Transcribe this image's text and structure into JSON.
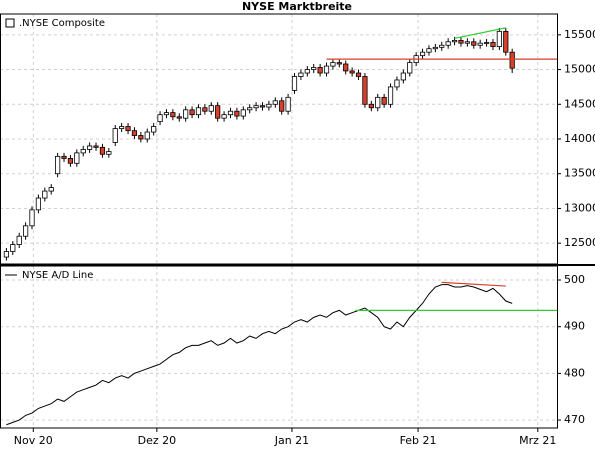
{
  "chart_data": [
    {
      "type": "candlestick",
      "title": "NYSE Marktbreite",
      "xlim": [
        -1,
        86
      ],
      "ylim": [
        12200,
        15800
      ],
      "yticks": [
        12500,
        13000,
        13500,
        14000,
        14500,
        15000,
        15500
      ],
      "grid": true,
      "legend": "top-left",
      "up_color": "#ffffff",
      "down_color": "#d9402b",
      "series": [
        {
          "name": ".NYSE Composite",
          "open": [
            12300,
            12380,
            12480,
            12600,
            12750,
            12980,
            13150,
            13250,
            13500,
            13750,
            13720,
            13650,
            13800,
            13850,
            13900,
            13880,
            13780,
            13950,
            14150,
            14180,
            14120,
            14050,
            14000,
            14100,
            14250,
            14350,
            14380,
            14320,
            14300,
            14420,
            14350,
            14450,
            14400,
            14480,
            14300,
            14350,
            14400,
            14330,
            14420,
            14450,
            14480,
            14460,
            14500,
            14550,
            14400,
            14700,
            14900,
            14950,
            15000,
            15030,
            14950,
            15050,
            15100,
            15080,
            14980,
            14950,
            14900,
            14500,
            14450,
            14600,
            14500,
            14750,
            14850,
            14950,
            15100,
            15200,
            15250,
            15300,
            15320,
            15350,
            15400,
            15420,
            15380,
            15400,
            15350,
            15380,
            15390,
            15330,
            15550,
            15250
          ],
          "high": [
            12430,
            12530,
            12650,
            12800,
            13030,
            13200,
            13300,
            13350,
            13800,
            13800,
            13770,
            13850,
            13900,
            13950,
            13950,
            13930,
            13870,
            14200,
            14230,
            14230,
            14170,
            14100,
            14150,
            14230,
            14400,
            14430,
            14430,
            14370,
            14470,
            14470,
            14500,
            14500,
            14530,
            14530,
            14400,
            14450,
            14450,
            14470,
            14500,
            14530,
            14530,
            14550,
            14600,
            14600,
            14650,
            14950,
            15000,
            15050,
            15080,
            15080,
            15100,
            15150,
            15150,
            15130,
            15030,
            15000,
            14950,
            14550,
            14650,
            14650,
            14800,
            14900,
            15000,
            15150,
            15250,
            15300,
            15350,
            15370,
            15400,
            15450,
            15470,
            15470,
            15450,
            15450,
            15430,
            15440,
            15440,
            15600,
            15600,
            15300
          ],
          "low": [
            12250,
            12330,
            12430,
            12550,
            12700,
            12930,
            13100,
            13200,
            13450,
            13670,
            13600,
            13600,
            13750,
            13800,
            13830,
            13730,
            13730,
            13900,
            14100,
            14070,
            14000,
            13950,
            13950,
            14050,
            14200,
            14300,
            14270,
            14250,
            14250,
            14300,
            14300,
            14350,
            14350,
            14250,
            14250,
            14300,
            14280,
            14280,
            14370,
            14400,
            14410,
            14410,
            14450,
            14350,
            14350,
            14650,
            14850,
            14900,
            14950,
            14900,
            14900,
            15000,
            15030,
            14930,
            14900,
            14850,
            14450,
            14400,
            14400,
            14450,
            14450,
            14700,
            14800,
            14900,
            15050,
            15150,
            15200,
            15250,
            15270,
            15300,
            15350,
            15330,
            15330,
            15300,
            15300,
            15330,
            15280,
            15280,
            15200,
            14950
          ],
          "close": [
            12380,
            12480,
            12600,
            12750,
            12980,
            13150,
            13250,
            13300,
            13750,
            13720,
            13650,
            13800,
            13850,
            13900,
            13880,
            13780,
            13820,
            14150,
            14180,
            14120,
            14050,
            14000,
            14100,
            14180,
            14350,
            14380,
            14320,
            14300,
            14420,
            14350,
            14450,
            14400,
            14480,
            14300,
            14350,
            14400,
            14330,
            14420,
            14450,
            14480,
            14460,
            14500,
            14550,
            14400,
            14600,
            14900,
            14950,
            15000,
            15030,
            14950,
            15050,
            15100,
            15080,
            14980,
            14950,
            14900,
            14500,
            14450,
            14600,
            14500,
            14750,
            14850,
            14950,
            15100,
            15200,
            15250,
            15300,
            15320,
            15350,
            15400,
            15420,
            15380,
            15400,
            15350,
            15380,
            15390,
            15330,
            15550,
            15250,
            15020
          ]
        }
      ],
      "lines": [
        {
          "color": "#d9402b",
          "x": [
            50,
            86
          ],
          "y": [
            15150,
            15150
          ]
        },
        {
          "color": "#33cc33",
          "x": [
            70,
            78
          ],
          "y": [
            15450,
            15600
          ]
        }
      ]
    },
    {
      "type": "line",
      "xlim": [
        -1,
        86
      ],
      "ylim": [
        468.3,
        503
      ],
      "yticks": [
        470,
        480,
        490,
        500
      ],
      "grid": true,
      "legend": "top-left",
      "xticks": [
        {
          "value": 4.2,
          "label": "Nov 20"
        },
        {
          "value": 23.5,
          "label": "Dez 20"
        },
        {
          "value": 44.6,
          "label": "Jan 21"
        },
        {
          "value": 64.3,
          "label": "Feb 21"
        },
        {
          "value": 83,
          "label": "Mrz 21"
        }
      ],
      "series": [
        {
          "name": "NYSE A/D Line",
          "color": "#000000",
          "values": [
            469,
            469.5,
            470,
            471,
            471.5,
            472.5,
            473,
            473.5,
            474.5,
            474,
            475,
            476,
            476.5,
            477,
            477.5,
            478.5,
            478,
            479,
            479.5,
            479,
            480,
            480.5,
            481,
            481.5,
            482,
            483,
            484,
            484.5,
            485.5,
            486,
            486,
            486.5,
            487,
            486,
            486.5,
            487.5,
            486.5,
            487,
            488,
            487.5,
            488.5,
            489,
            488.5,
            489.5,
            490,
            491,
            491.5,
            491,
            492,
            492.5,
            492,
            493,
            493.5,
            492.5,
            493,
            493.5,
            494,
            493,
            492,
            490,
            489.5,
            491,
            490,
            492,
            493.5,
            495,
            497,
            498.5,
            499,
            499,
            498.5,
            498.5,
            498.8,
            498.5,
            498,
            497.5,
            498.2,
            497,
            495.5,
            495
          ]
        }
      ],
      "lines": [
        {
          "color": "#33cc33",
          "x": [
            54.5,
            86
          ],
          "y": [
            493.5,
            493.5
          ]
        },
        {
          "color": "#d9402b",
          "x": [
            68,
            78
          ],
          "y": [
            499.5,
            498.7
          ]
        }
      ]
    }
  ]
}
